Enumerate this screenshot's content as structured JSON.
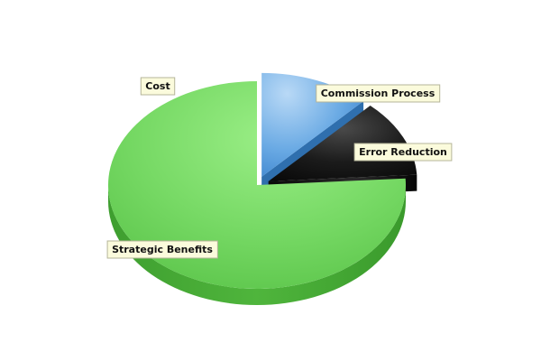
{
  "chart_data": {
    "type": "pie",
    "title": "",
    "categories": [
      "Cost",
      "Commission Process",
      "Error Reduction",
      "Strategic Benefits"
    ],
    "values": [
      0,
      12,
      12,
      76
    ],
    "exploded": [
      "Commission Process",
      "Error Reduction"
    ],
    "style": "3d",
    "colors": {
      "Cost": "#e6e6e6",
      "Commission Process": "#5fa3e0",
      "Error Reduction": "#1a1a1a",
      "Strategic Benefits": "#6fd160"
    },
    "legend": "none"
  }
}
